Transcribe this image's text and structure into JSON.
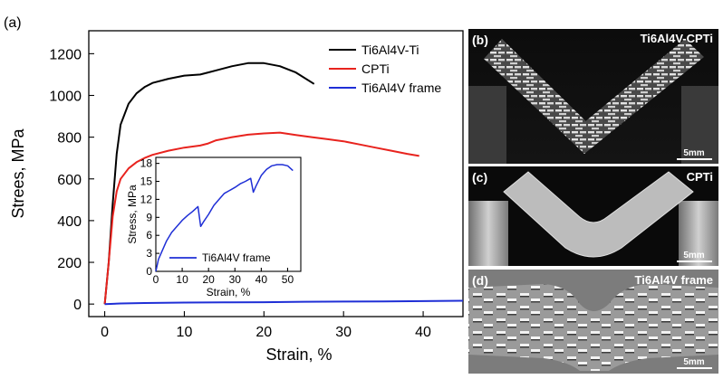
{
  "panel_labels": {
    "a": "(a)",
    "b": "(b)",
    "c": "(c)",
    "d": "(d)"
  },
  "photos": [
    {
      "id": "b",
      "title": "Ti6Al4V-CPTi",
      "scale_label": "5mm"
    },
    {
      "id": "c",
      "title": "CPTi",
      "scale_label": "5mm"
    },
    {
      "id": "d",
      "title": "Ti6Al4V frame",
      "scale_label": "5mm"
    }
  ],
  "colors": {
    "black": "#000000",
    "red": "#e8231e",
    "blue": "#1f2fd6"
  },
  "chart_data": [
    {
      "type": "line",
      "xlabel": "Strain, %",
      "ylabel": "Strees,  MPa",
      "xlim": [
        -2,
        45
      ],
      "ylim": [
        -60,
        1310
      ],
      "xticks": [
        0,
        10,
        20,
        30,
        40
      ],
      "yticks": [
        0,
        200,
        400,
        600,
        800,
        1000,
        1200
      ],
      "legend_position": "top-right",
      "series": [
        {
          "name": "Ti6Al4V-Ti",
          "color": "#000000",
          "x": [
            0,
            0.5,
            1,
            1.5,
            2,
            3,
            4,
            5,
            6,
            8,
            10,
            12,
            13,
            14,
            16,
            18,
            20,
            22,
            24,
            26.3
          ],
          "y": [
            0,
            200,
            480,
            720,
            860,
            960,
            1010,
            1040,
            1060,
            1080,
            1095,
            1100,
            1110,
            1120,
            1140,
            1155,
            1155,
            1140,
            1110,
            1055
          ]
        },
        {
          "name": "CPTi",
          "color": "#e8231e",
          "x": [
            0,
            0.5,
            1,
            1.5,
            2,
            3,
            4,
            5,
            6,
            8,
            10,
            12,
            13,
            14,
            16,
            18,
            20,
            22,
            24,
            26,
            28,
            30,
            32,
            34,
            36,
            38,
            39.5
          ],
          "y": [
            0,
            200,
            420,
            540,
            600,
            650,
            680,
            700,
            715,
            735,
            750,
            760,
            770,
            785,
            800,
            812,
            818,
            822,
            810,
            800,
            790,
            780,
            765,
            750,
            735,
            720,
            710
          ]
        },
        {
          "name": "Ti6Al4V frame",
          "color": "#1f2fd6",
          "x": [
            0,
            2,
            5,
            10,
            15,
            20,
            25,
            30,
            35,
            40,
            45
          ],
          "y": [
            0,
            3,
            5,
            7,
            8,
            9,
            11,
            12,
            13,
            14,
            16
          ]
        }
      ]
    },
    {
      "type": "line",
      "xlabel": "Strain, %",
      "ylabel": "Stress, MPa",
      "xlim": [
        0,
        55
      ],
      "ylim": [
        0,
        19
      ],
      "xticks": [
        0,
        10,
        20,
        30,
        40,
        50
      ],
      "yticks": [
        0,
        3,
        6,
        9,
        12,
        15,
        18
      ],
      "legend_position": "bottom-right",
      "series": [
        {
          "name": "Ti6Al4V frame",
          "color": "#1f2fd6",
          "x": [
            0,
            1,
            2,
            4,
            6,
            8,
            10,
            12,
            14,
            16,
            17,
            18,
            20,
            22,
            24,
            26,
            28,
            30,
            32,
            34,
            36,
            37,
            38,
            40,
            42,
            44,
            46,
            48,
            50,
            52
          ],
          "y": [
            0,
            2,
            3,
            5,
            6.5,
            7.5,
            8.5,
            9.3,
            10,
            10.8,
            7.5,
            8.2,
            9.5,
            11,
            12,
            13,
            13.5,
            14,
            14.6,
            15,
            15.5,
            13.2,
            14.2,
            16,
            17,
            17.6,
            17.8,
            17.8,
            17.6,
            16.8
          ]
        }
      ]
    }
  ]
}
